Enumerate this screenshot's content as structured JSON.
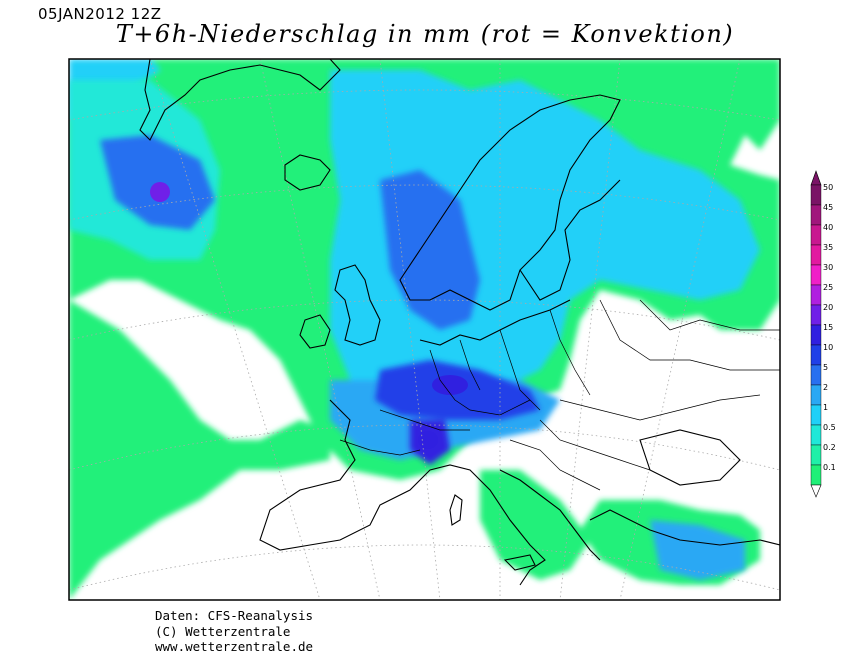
{
  "header": {
    "date": "05JAN2012 12Z",
    "title": "T+6h-Niederschlag in mm (rot = Konvektion)"
  },
  "legend": {
    "levels": [
      {
        "label": "50",
        "color": "#7a1466"
      },
      {
        "label": "45",
        "color": "#a0167c"
      },
      {
        "label": "40",
        "color": "#c81890"
      },
      {
        "label": "35",
        "color": "#e21aa0"
      },
      {
        "label": "30",
        "color": "#f020c8"
      },
      {
        "label": "25",
        "color": "#b020e0"
      },
      {
        "label": "20",
        "color": "#7020e8"
      },
      {
        "label": "15",
        "color": "#3020e0"
      },
      {
        "label": "10",
        "color": "#2040e8"
      },
      {
        "label": "5",
        "color": "#2870f0"
      },
      {
        "label": "2",
        "color": "#2aa8f4"
      },
      {
        "label": "1",
        "color": "#20d0f8"
      },
      {
        "label": "0.5",
        "color": "#20e8d8"
      },
      {
        "label": "0.2",
        "color": "#20f0a8"
      },
      {
        "label": "0.1",
        "color": "#20f078"
      }
    ]
  },
  "footer": {
    "line1": "Daten: CFS-Reanalysis",
    "line2": "(C) Wetterzentrale",
    "line3": "www.wetterzentrale.de"
  }
}
